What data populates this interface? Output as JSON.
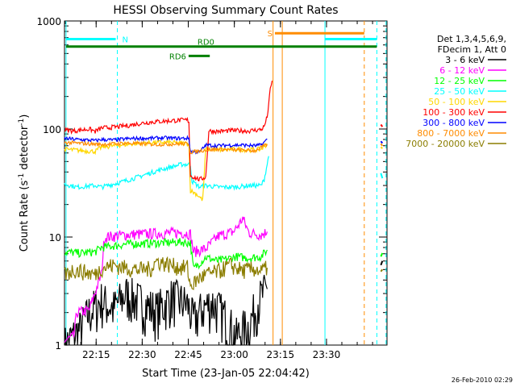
{
  "chart_data": {
    "type": "line",
    "title": "HESSI Observing Summary Count Rates",
    "xlabel": "Start Time (23-Jan-05 22:04:42)",
    "ylabel_main": "Count Rate (s",
    "ylabel_sup1": "-1",
    "ylabel_mid": " detector",
    "ylabel_sup2": "-1",
    "ylabel_end": ")",
    "x_units": "minutes after 22:04:42",
    "x_range": [
      0,
      105
    ],
    "y_scale": "log",
    "y_range": [
      1,
      1000
    ],
    "x_ticks": [
      {
        "value": 10.3,
        "label": "22:15"
      },
      {
        "value": 25.3,
        "label": "22:30"
      },
      {
        "value": 40.3,
        "label": "22:45"
      },
      {
        "value": 55.3,
        "label": "23:00"
      },
      {
        "value": 70.3,
        "label": "23:15"
      },
      {
        "value": 85.3,
        "label": "23:30"
      }
    ],
    "y_ticks": [
      {
        "value": 1,
        "label": "1"
      },
      {
        "value": 10,
        "label": "10"
      },
      {
        "value": 100,
        "label": "100"
      },
      {
        "value": 1000,
        "label": "1000"
      }
    ],
    "legend": {
      "position": "right",
      "header": [
        "Det 1,3,4,5,6,9,",
        "FDecim 1, Att 0"
      ]
    },
    "series": [
      {
        "name": "3 - 6 keV",
        "color": "#000000",
        "x": [
          0,
          5,
          8,
          12,
          16,
          20,
          25,
          30,
          35,
          40,
          42,
          45,
          48,
          52,
          56,
          58,
          60,
          63,
          66
        ],
        "y": [
          1.0,
          1.4,
          2.0,
          2.6,
          2.2,
          3.0,
          2.5,
          2.1,
          2.8,
          2.4,
          1.7,
          2.2,
          2.5,
          1.9,
          1.2,
          1.4,
          1.5,
          2.6,
          3.3
        ]
      },
      {
        "name": "6 - 12 keV",
        "color": "#ff00ff",
        "x": [
          0,
          3,
          4,
          8,
          12,
          13,
          20,
          30,
          38,
          41,
          42,
          46,
          50,
          55,
          57,
          58,
          60,
          64,
          66
        ],
        "y": [
          1.1,
          1.2,
          2.0,
          2.1,
          4.5,
          10.0,
          10.5,
          10.8,
          11.0,
          10.7,
          7.3,
          7.8,
          10.2,
          11.2,
          13.3,
          15.0,
          11.0,
          10.5,
          11.2
        ]
      },
      {
        "name": "12 - 25 keV",
        "color": "#00ff00",
        "x": [
          0,
          5,
          10,
          12,
          20,
          30,
          38,
          41,
          42,
          46,
          50,
          56,
          60,
          64,
          66
        ],
        "y": [
          7.3,
          7.1,
          7.3,
          8.0,
          8.6,
          8.8,
          9.0,
          8.8,
          5.1,
          6.5,
          6.0,
          6.6,
          6.4,
          6.6,
          7.6
        ]
      },
      {
        "name": "25 - 50 keV",
        "color": "#00ffff",
        "x": [
          0,
          4,
          10,
          12,
          18,
          24,
          30,
          34,
          38,
          41,
          41.5,
          44,
          46,
          50,
          56,
          60,
          64,
          65,
          66.5
        ],
        "y": [
          31,
          29,
          30,
          29,
          32,
          36,
          41,
          44,
          47,
          47,
          33,
          29,
          30,
          29,
          29,
          30,
          30,
          34,
          56
        ]
      },
      {
        "name": "50 - 100 keV",
        "color": "#ffd700",
        "x": [
          0,
          6,
          10,
          12,
          16,
          20,
          25,
          30,
          34,
          38,
          40.5,
          41,
          43,
          45,
          46,
          50,
          56,
          60,
          64,
          66
        ],
        "y": [
          65,
          63,
          62,
          68,
          70,
          72,
          74,
          75,
          75,
          74,
          73,
          27,
          25,
          22,
          65,
          64,
          65,
          64,
          65,
          73
        ]
      },
      {
        "name": "100 - 300 keV",
        "color": "#ff0000",
        "x": [
          0,
          3,
          8,
          10,
          12,
          16,
          20,
          24,
          28,
          32,
          36,
          40,
          40.5,
          41,
          44,
          46,
          47,
          50,
          55,
          60,
          64,
          65,
          66,
          67,
          67.6
        ],
        "y": [
          98,
          96,
          100,
          95,
          102,
          104,
          107,
          112,
          116,
          118,
          120,
          121,
          118,
          37,
          34,
          36,
          96,
          95,
          97,
          96,
          99,
          105,
          130,
          230,
          280
        ]
      },
      {
        "name": "300 - 800 keV",
        "color": "#0000ff",
        "x": [
          0,
          4,
          8,
          10,
          12,
          16,
          20,
          24,
          28,
          32,
          36,
          40.5,
          41,
          44,
          46,
          50,
          54,
          58,
          62,
          64,
          66
        ],
        "y": [
          82,
          80,
          79,
          78,
          80,
          79,
          81,
          82,
          82,
          83,
          82,
          82,
          62,
          61,
          71,
          70,
          71,
          71,
          70,
          71,
          80
        ]
      },
      {
        "name": "800 - 7000 keV",
        "color": "#ff8c00",
        "x": [
          0,
          8,
          12,
          20,
          30,
          38,
          40.5,
          41,
          46,
          50,
          56,
          62,
          66
        ],
        "y": [
          75,
          73,
          72,
          74,
          72,
          73,
          73,
          61,
          64,
          65,
          64,
          63,
          72
        ]
      },
      {
        "name": "7000 - 20000 keV",
        "color": "#8b7d00",
        "x": [
          0,
          3,
          6,
          10,
          12,
          16,
          20,
          24,
          28,
          30,
          34,
          38,
          40,
          41,
          44,
          46,
          50,
          54,
          58,
          62,
          64,
          66
        ],
        "y": [
          4.5,
          5.0,
          4.8,
          4.5,
          5.2,
          5.5,
          5.2,
          5.0,
          5.1,
          6.0,
          5.6,
          5.2,
          5.3,
          3.5,
          4.2,
          4.5,
          4.8,
          5.5,
          4.9,
          5.1,
          4.8,
          5.2
        ]
      }
    ],
    "late_series_points": [
      {
        "color": "#000000",
        "x": [
          103,
          103.5
        ],
        "y": [
          5.5,
          6.0
        ]
      },
      {
        "color": "#00ffff",
        "x": [
          103,
          103.5
        ],
        "y": [
          39,
          35
        ]
      },
      {
        "color": "#0000ff",
        "x": [
          103,
          103.5
        ],
        "y": [
          77,
          74
        ]
      },
      {
        "color": "#ff0000",
        "x": [
          103,
          103.5
        ],
        "y": [
          110,
          105
        ]
      },
      {
        "color": "#ffd700",
        "x": [
          103,
          103.5
        ],
        "y": [
          68,
          66
        ]
      },
      {
        "color": "#ff8c00",
        "x": [
          103,
          103.5
        ],
        "y": [
          73,
          70
        ]
      },
      {
        "color": "#00ff00",
        "x": [
          103,
          103.5
        ],
        "y": [
          6.6,
          7.1
        ]
      },
      {
        "color": "#8b7d00",
        "x": [
          103,
          103.5
        ],
        "y": [
          4.8,
          5.0
        ]
      }
    ],
    "vertical_markers": [
      {
        "x": 0.5,
        "color": "#00ffff",
        "style": "solid"
      },
      {
        "x": 17.2,
        "color": "#00ffff",
        "style": "dashed"
      },
      {
        "x": 67.9,
        "color": "#ff8c00",
        "style": "solid"
      },
      {
        "x": 70.9,
        "color": "#ff8c00",
        "style": "solid"
      },
      {
        "x": 84.8,
        "color": "#00ffff",
        "style": "solid"
      },
      {
        "x": 97.6,
        "color": "#ff8c00",
        "style": "dashed"
      },
      {
        "x": 101.7,
        "color": "#00ffff",
        "style": "dashed"
      },
      {
        "x": 104.7,
        "color": "#00ffff",
        "style": "dashed"
      }
    ],
    "flags": [
      {
        "label": "N",
        "color": "#00ffff",
        "x_start": 0.5,
        "x_end": 17.2,
        "y": 680,
        "label_side": "right"
      },
      {
        "label": "",
        "color": "#00ffff",
        "x_start": 84.8,
        "x_end": 101.7,
        "y": 680,
        "label_side": "none"
      },
      {
        "label": "S",
        "color": "#ff8c00",
        "x_start": 68.5,
        "x_end": 97.6,
        "y": 770,
        "label_side": "left"
      },
      {
        "label": "RD0",
        "color": "#008000",
        "x_start": 0.5,
        "x_end": 101.7,
        "y": 580,
        "label_side": "center"
      },
      {
        "label": "RD6",
        "color": "#008000",
        "x_start": 40.4,
        "x_end": 47.3,
        "y": 475,
        "label_side": "left"
      }
    ],
    "timestamp": "26-Feb-2010 02:29"
  }
}
